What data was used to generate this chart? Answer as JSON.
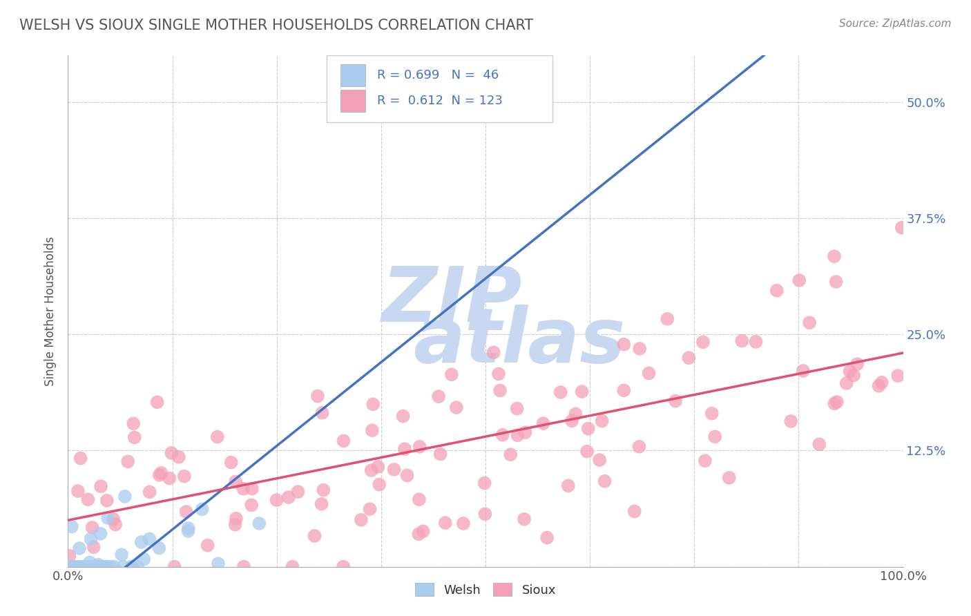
{
  "title": "WELSH VS SIOUX SINGLE MOTHER HOUSEHOLDS CORRELATION CHART",
  "source": "Source: ZipAtlas.com",
  "ylabel": "Single Mother Households",
  "xlim": [
    0.0,
    1.0
  ],
  "ylim": [
    0.0,
    0.55
  ],
  "xticks": [
    0.0,
    0.125,
    0.25,
    0.375,
    0.5,
    0.625,
    0.75,
    0.875,
    1.0
  ],
  "yticks": [
    0.0,
    0.125,
    0.25,
    0.375,
    0.5
  ],
  "ytick_labels": [
    "",
    "12.5%",
    "25.0%",
    "37.5%",
    "50.0%"
  ],
  "welsh_R": 0.699,
  "welsh_N": 46,
  "sioux_R": 0.612,
  "sioux_N": 123,
  "welsh_color": "#AACCEE",
  "sioux_color": "#F4A0B8",
  "welsh_line_color": "#4472C4",
  "sioux_line_color": "#E05070",
  "watermark_color": "#C8D8F0",
  "legend_label_color": "#4472C4",
  "text_color_dark": "#4472C4",
  "background_color": "#FFFFFF",
  "grid_color": "#CCCCCC",
  "title_color": "#555555",
  "source_color": "#888888",
  "welsh_line_intercept": -0.05,
  "welsh_line_slope": 0.72,
  "sioux_line_intercept": 0.05,
  "sioux_line_slope": 0.18
}
